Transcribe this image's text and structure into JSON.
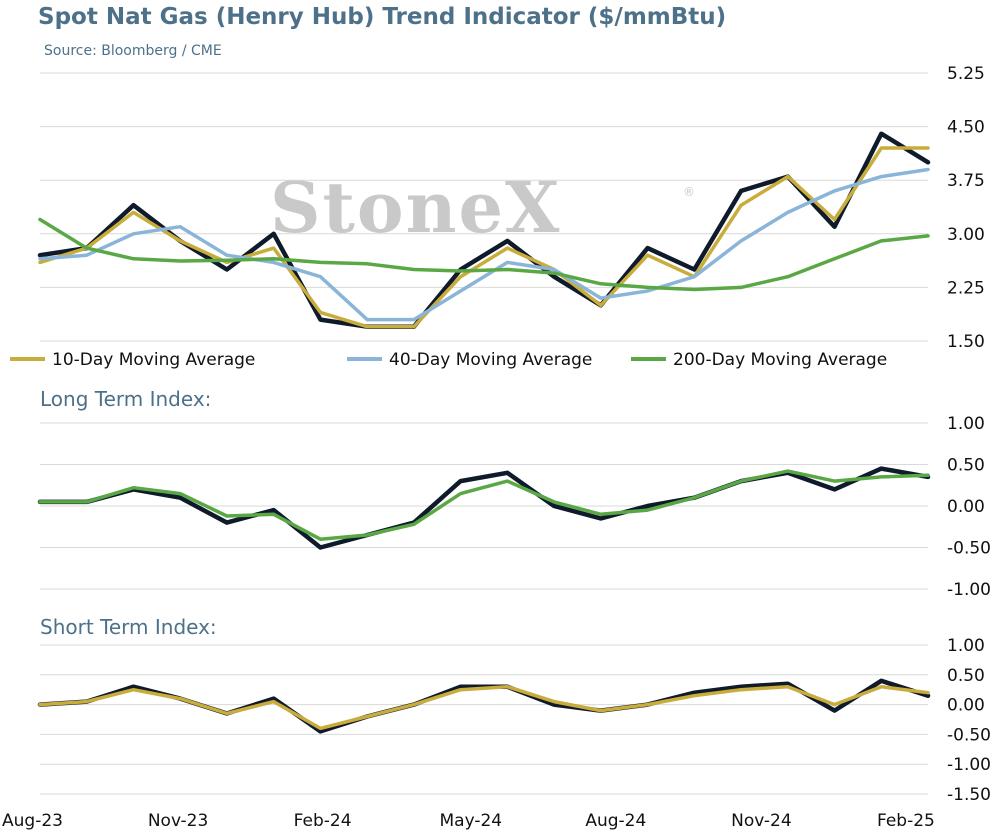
{
  "title": "Spot Nat Gas (Henry Hub) Trend Indicator ($/mmBtu)",
  "source": "Source: Bloomberg / CME",
  "watermark": "StoneX",
  "watermark_mark": "®",
  "colors": {
    "price": "#0f1a2b",
    "ma10": "#c8ac3c",
    "ma40": "#8ab4d8",
    "ma200": "#5aa845",
    "grid": "#d9d9d9",
    "text_accent": "#4d7188"
  },
  "x_labels": [
    "Aug-23",
    "Nov-23",
    "Feb-24",
    "May-24",
    "Aug-24",
    "Nov-24",
    "Feb-25"
  ],
  "chart_data": [
    {
      "type": "line",
      "ylabel": "",
      "ylim": [
        1.5,
        5.25
      ],
      "yticks": [
        "5.25",
        "4.50",
        "3.75",
        "3.00",
        "2.25",
        "1.50"
      ],
      "grid": true,
      "legend_position": "bottom",
      "x_dates": [
        "Aug-23",
        "Sep-23",
        "Oct-23",
        "Nov-23",
        "Dec-23",
        "Jan-24",
        "Feb-24",
        "Mar-24",
        "Apr-24",
        "May-24",
        "Jun-24",
        "Jul-24",
        "Aug-24",
        "Sep-24",
        "Oct-24",
        "Nov-24",
        "Dec-24",
        "Jan-25",
        "Feb-25",
        "Feb-25"
      ],
      "series": [
        {
          "name": "",
          "role": "price",
          "values": [
            2.7,
            2.8,
            3.4,
            2.9,
            2.5,
            3.0,
            1.8,
            1.7,
            1.7,
            2.5,
            2.9,
            2.4,
            2.0,
            2.8,
            2.5,
            3.6,
            3.8,
            3.1,
            4.4,
            4.0
          ]
        },
        {
          "name": "10-Day Moving Average",
          "role": "ma10",
          "values": [
            2.6,
            2.8,
            3.3,
            2.9,
            2.6,
            2.8,
            1.9,
            1.7,
            1.7,
            2.4,
            2.8,
            2.5,
            2.0,
            2.7,
            2.4,
            3.4,
            3.8,
            3.2,
            4.2,
            4.2
          ]
        },
        {
          "name": "40-Day Moving Average",
          "role": "ma40",
          "values": [
            2.65,
            2.7,
            3.0,
            3.1,
            2.7,
            2.6,
            2.4,
            1.8,
            1.8,
            2.2,
            2.6,
            2.5,
            2.1,
            2.2,
            2.4,
            2.9,
            3.3,
            3.6,
            3.8,
            3.9
          ]
        },
        {
          "name": "200-Day Moving Average",
          "role": "ma200",
          "values": [
            3.2,
            2.8,
            2.65,
            2.62,
            2.63,
            2.65,
            2.6,
            2.58,
            2.5,
            2.48,
            2.5,
            2.45,
            2.3,
            2.25,
            2.22,
            2.25,
            2.4,
            2.65,
            2.9,
            2.97
          ]
        }
      ]
    },
    {
      "type": "line",
      "title": "Long Term Index:",
      "ylim": [
        -1.0,
        1.0
      ],
      "yticks": [
        "1.00",
        "0.50",
        "0.00",
        "-0.50",
        "-1.00"
      ],
      "grid": true,
      "series": [
        {
          "name": "",
          "role": "index",
          "values": [
            0.05,
            0.05,
            0.2,
            0.1,
            -0.2,
            -0.05,
            -0.5,
            -0.35,
            -0.2,
            0.3,
            0.4,
            0.0,
            -0.15,
            0.0,
            0.1,
            0.3,
            0.4,
            0.2,
            0.45,
            0.35
          ]
        },
        {
          "name": "",
          "role": "signal",
          "values": [
            0.05,
            0.05,
            0.22,
            0.15,
            -0.12,
            -0.1,
            -0.4,
            -0.35,
            -0.22,
            0.15,
            0.3,
            0.05,
            -0.1,
            -0.05,
            0.1,
            0.3,
            0.42,
            0.3,
            0.35,
            0.37
          ]
        }
      ]
    },
    {
      "type": "line",
      "title": "Short Term Index:",
      "ylim": [
        -1.5,
        1.0
      ],
      "yticks": [
        "1.00",
        "0.50",
        "0.00",
        "-0.50",
        "-1.00",
        "-1.50"
      ],
      "grid": true,
      "series": [
        {
          "name": "",
          "role": "index",
          "values": [
            0.0,
            0.05,
            0.3,
            0.1,
            -0.15,
            0.1,
            -0.45,
            -0.2,
            0.0,
            0.3,
            0.3,
            0.0,
            -0.1,
            0.0,
            0.2,
            0.3,
            0.35,
            -0.1,
            0.4,
            0.15
          ]
        },
        {
          "name": "",
          "role": "signal",
          "values": [
            0.0,
            0.05,
            0.25,
            0.1,
            -0.15,
            0.05,
            -0.4,
            -0.2,
            0.0,
            0.25,
            0.3,
            0.05,
            -0.1,
            0.0,
            0.15,
            0.25,
            0.3,
            0.0,
            0.3,
            0.2
          ]
        }
      ]
    }
  ]
}
